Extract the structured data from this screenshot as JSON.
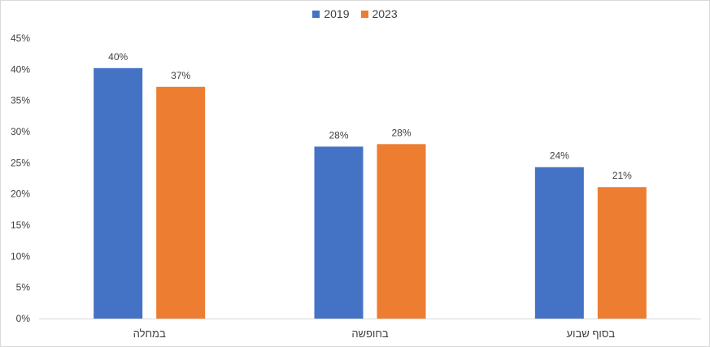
{
  "chart_data": {
    "type": "bar",
    "title": "",
    "xlabel": "",
    "ylabel": "",
    "categories": [
      "במחלה",
      "בחופשה",
      "בסוף שבוע"
    ],
    "series": [
      {
        "name": "2019",
        "color": "#4472c4",
        "values": [
          40.2,
          27.6,
          24.3
        ],
        "labels": [
          "40%",
          "28%",
          "24%"
        ]
      },
      {
        "name": "2023",
        "color": "#ed7d31",
        "values": [
          37.2,
          28.0,
          21.1
        ],
        "labels": [
          "37%",
          "28%",
          "21%"
        ]
      }
    ],
    "ylim": [
      0,
      45
    ],
    "yticks": [
      "0%",
      "5%",
      "10%",
      "15%",
      "20%",
      "25%",
      "30%",
      "35%",
      "40%",
      "45%"
    ],
    "grid": false,
    "legend_position": "top"
  }
}
